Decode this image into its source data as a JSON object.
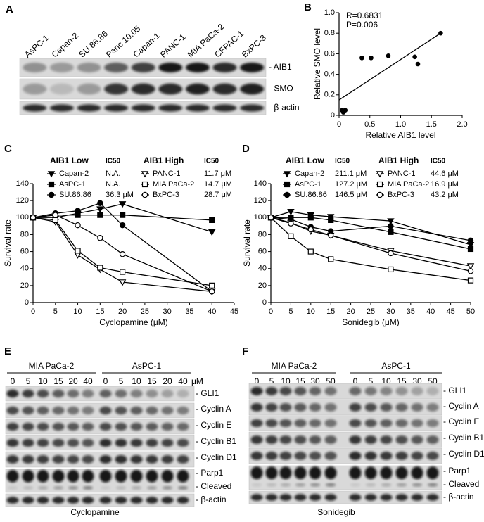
{
  "panel_labels": [
    "A",
    "B",
    "C",
    "D",
    "E",
    "F"
  ],
  "panel_a": {
    "cell_lines": [
      "AsPC-1",
      "Capan-2",
      "SU.86.86",
      "Panc 10.05",
      "Capan-1",
      "PANC-1",
      "MIA PaCa-2",
      "CFPAC-1",
      "BxPC-3"
    ],
    "bands": [
      "- AIB1",
      "- SMO",
      "- β-actin"
    ]
  },
  "chart_data": [
    {
      "type": "scatter",
      "x_label": "Relative AIB1 level",
      "y_label": "Relative SMO level",
      "annotations": [
        "R=0.6831",
        "P=0.006"
      ],
      "x": [
        0.05,
        0.1,
        0.07,
        0.37,
        0.52,
        0.8,
        1.23,
        1.28,
        1.65
      ],
      "values": [
        0.05,
        0.05,
        0.03,
        0.56,
        0.56,
        0.58,
        0.57,
        0.5,
        0.8
      ],
      "color": "#000000",
      "trendline": {
        "x": [
          0,
          1.65
        ],
        "values": [
          0.15,
          0.8
        ]
      },
      "xlim": [
        0,
        2
      ],
      "xticks": [
        0,
        0.5,
        {
          "value": 1,
          "label": "1.0"
        },
        1.5,
        {
          "value": 2,
          "label": "2.0"
        }
      ],
      "ylim": [
        0,
        1
      ],
      "yticks": [
        0,
        0.2,
        0.4,
        0.6,
        0.8,
        {
          "value": 1,
          "label": "1.0"
        }
      ]
    },
    {
      "type": "line",
      "x_label": "Cyclopamine (μM)",
      "y_label": "Survival rate",
      "legend_groups": [
        {
          "title": "AIB1 Low",
          "ic50_title": "IC50"
        },
        {
          "title": "AIB1 High",
          "ic50_title": "IC50"
        }
      ],
      "x": [
        0,
        5,
        10,
        15,
        20,
        40
      ],
      "series": [
        {
          "name": "Capan-2",
          "ic50": "N.A.",
          "marker": "triangle-down",
          "filled": true,
          "color": "#000000",
          "values": [
            100,
            100,
            105,
            110,
            116,
            83
          ]
        },
        {
          "name": "AsPC-1",
          "ic50": "N.A.",
          "marker": "square",
          "filled": true,
          "color": "#000000",
          "values": [
            100,
            103,
            103,
            103,
            103,
            97
          ]
        },
        {
          "name": "SU.86.86",
          "ic50": "36.3 μM",
          "marker": "circle",
          "filled": true,
          "color": "#000000",
          "values": [
            100,
            105,
            108,
            117,
            91,
            13
          ]
        },
        {
          "name": "PANC-1",
          "ic50": "11.7 μM",
          "marker": "triangle-down",
          "filled": false,
          "color": "#000000",
          "values": [
            100,
            95,
            56,
            39,
            24,
            13
          ]
        },
        {
          "name": "MIA PaCa-2",
          "ic50": "14.7 μM",
          "marker": "square",
          "filled": false,
          "color": "#000000",
          "values": [
            100,
            97,
            61,
            41,
            36,
            20
          ]
        },
        {
          "name": "BxPC-3",
          "ic50": "28.7 μM",
          "marker": "circle",
          "filled": false,
          "color": "#000000",
          "values": [
            100,
            103,
            91,
            76,
            57,
            13
          ]
        }
      ],
      "xlim": [
        0,
        45
      ],
      "xticks": [
        0,
        5,
        10,
        15,
        20,
        25,
        30,
        35,
        40,
        45
      ],
      "ylim": [
        0,
        140
      ],
      "yticks": [
        0,
        20,
        40,
        60,
        80,
        100,
        120,
        140
      ]
    },
    {
      "type": "line",
      "x_label": "Sonidegib (μM)",
      "y_label": "Survival rate",
      "legend_groups": [
        {
          "title": "AIB1 Low",
          "ic50_title": "IC50"
        },
        {
          "title": "AIB1 High",
          "ic50_title": "IC50"
        }
      ],
      "x": [
        0,
        5,
        10,
        15,
        30,
        50
      ],
      "series": [
        {
          "name": "Capan-2",
          "ic50": "211.1 μM",
          "marker": "triangle-down",
          "filled": true,
          "color": "#000000",
          "values": [
            100,
            107,
            103,
            101,
            96,
            68
          ]
        },
        {
          "name": "AsPC-1",
          "ic50": "127.2 μM",
          "marker": "square",
          "filled": true,
          "color": "#000000",
          "values": [
            100,
            100,
            100,
            97,
            83,
            63
          ]
        },
        {
          "name": "SU.86.86",
          "ic50": "146.5 μM",
          "marker": "circle",
          "filled": true,
          "color": "#000000",
          "values": [
            100,
            98,
            89,
            84,
            90,
            73
          ]
        },
        {
          "name": "PANC-1",
          "ic50": "44.6 μM",
          "marker": "triangle-down",
          "filled": false,
          "color": "#000000",
          "values": [
            100,
            94,
            84,
            79,
            61,
            43
          ]
        },
        {
          "name": "MIA PaCa-2",
          "ic50": "16.9 μM",
          "marker": "square",
          "filled": false,
          "color": "#000000",
          "values": [
            100,
            78,
            60,
            51,
            39,
            26
          ]
        },
        {
          "name": "BxPC-3",
          "ic50": "43.2 μM",
          "marker": "circle",
          "filled": false,
          "color": "#000000",
          "values": [
            100,
            93,
            86,
            79,
            58,
            37
          ]
        }
      ],
      "xlim": [
        0,
        50
      ],
      "xticks": [
        0,
        5,
        10,
        15,
        20,
        25,
        30,
        35,
        40,
        45,
        50
      ],
      "ylim": [
        0,
        140
      ],
      "yticks": [
        0,
        20,
        40,
        60,
        80,
        100,
        120,
        140
      ]
    }
  ],
  "panel_e": {
    "groups": [
      "MIA PaCa-2",
      "AsPC-1"
    ],
    "doses": [
      "0",
      "5",
      "10",
      "15",
      "20",
      "40"
    ],
    "unit": "μM",
    "bands": [
      "- GLI1",
      "- Cyclin A",
      "- Cyclin E",
      "- Cyclin B1",
      "- Cyclin D1",
      "- Parp1",
      "- Cleaved",
      "- β-actin"
    ],
    "treatment": "Cyclopamine"
  },
  "panel_f": {
    "groups": [
      "MIA PaCa-2",
      "AsPC-1"
    ],
    "doses": [
      "0",
      "5",
      "10",
      "15",
      "30",
      "50"
    ],
    "bands": [
      "- GLI1",
      "- Cyclin A",
      "- Cyclin E",
      "- Cyclin B1",
      "- Cyclin D1",
      "- Parp1",
      "- Cleaved",
      "- β-actin"
    ],
    "treatment": "Sonidegib"
  }
}
